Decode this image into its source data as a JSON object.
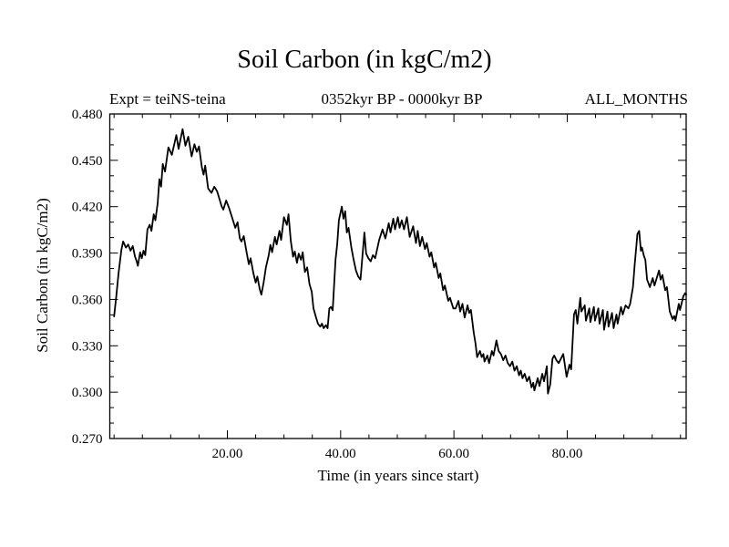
{
  "header": {
    "title": "Soil Carbon (in kgC/m2)",
    "experiment_label": "Expt = teiNS-teina",
    "period_label": "0352kyr BP - 0000kyr BP",
    "months_label": "ALL_MONTHS"
  },
  "chart_data": {
    "type": "line",
    "title": "Soil Carbon (in kgC/m2)",
    "subtitle": "0352kyr BP - 0000kyr BP",
    "annotations": [
      "Expt = teiNS-teina",
      "ALL_MONTHS"
    ],
    "xlabel": "Time (in years since start)",
    "ylabel": "Soil Carbon (in kgC/m2)",
    "xlim": [
      -0.75,
      101
    ],
    "ylim": [
      0.27,
      0.48
    ],
    "x_major_ticks": [
      20,
      40,
      60,
      80
    ],
    "x_major_tick_labels": [
      "20.00",
      "40.00",
      "60.00",
      "80.00"
    ],
    "x_minor_step": 5,
    "y_major_ticks": [
      0.27,
      0.3,
      0.33,
      0.36,
      0.39,
      0.42,
      0.45,
      0.48
    ],
    "y_major_tick_labels": [
      "0.270",
      "0.300",
      "0.330",
      "0.360",
      "0.390",
      "0.420",
      "0.450",
      "0.480"
    ],
    "y_minor_step": 0.01,
    "grid": false,
    "legend": false,
    "line_color": "#000000",
    "series": [
      {
        "name": "soil_carbon",
        "points": [
          [
            0.0,
            0.349
          ],
          [
            0.4,
            0.362
          ],
          [
            0.8,
            0.377
          ],
          [
            1.3,
            0.392
          ],
          [
            1.6,
            0.3975
          ],
          [
            2.1,
            0.3935
          ],
          [
            2.5,
            0.3955
          ],
          [
            2.9,
            0.3915
          ],
          [
            3.3,
            0.3945
          ],
          [
            3.7,
            0.3876
          ],
          [
            4.0,
            0.3846
          ],
          [
            4.2,
            0.3817
          ],
          [
            4.6,
            0.3905
          ],
          [
            4.9,
            0.3866
          ],
          [
            5.2,
            0.3915
          ],
          [
            5.5,
            0.3886
          ],
          [
            5.9,
            0.4053
          ],
          [
            6.3,
            0.4083
          ],
          [
            6.6,
            0.4043
          ],
          [
            7.0,
            0.4151
          ],
          [
            7.3,
            0.4112
          ],
          [
            7.7,
            0.422
          ],
          [
            8.0,
            0.4378
          ],
          [
            8.3,
            0.4329
          ],
          [
            8.6,
            0.4476
          ],
          [
            9.0,
            0.4427
          ],
          [
            9.6,
            0.4584
          ],
          [
            10.2,
            0.4535
          ],
          [
            11.0,
            0.4663
          ],
          [
            11.4,
            0.4574
          ],
          [
            12.1,
            0.4702
          ],
          [
            12.6,
            0.4594
          ],
          [
            13.1,
            0.4653
          ],
          [
            13.7,
            0.4525
          ],
          [
            14.2,
            0.4604
          ],
          [
            14.6,
            0.4555
          ],
          [
            15.0,
            0.459
          ],
          [
            15.5,
            0.4456
          ],
          [
            15.8,
            0.4407
          ],
          [
            16.1,
            0.4466
          ],
          [
            16.6,
            0.4318
          ],
          [
            17.2,
            0.4289
          ],
          [
            17.7,
            0.4329
          ],
          [
            18.2,
            0.4299
          ],
          [
            19.0,
            0.4201
          ],
          [
            19.3,
            0.4181
          ],
          [
            19.8,
            0.424
          ],
          [
            20.3,
            0.4191
          ],
          [
            20.9,
            0.4122
          ],
          [
            21.4,
            0.4063
          ],
          [
            21.8,
            0.41
          ],
          [
            22.2,
            0.3994
          ],
          [
            22.5,
            0.3975
          ],
          [
            22.9,
            0.401
          ],
          [
            23.4,
            0.3905
          ],
          [
            23.8,
            0.3827
          ],
          [
            24.1,
            0.3866
          ],
          [
            24.6,
            0.3768
          ],
          [
            25.0,
            0.3709
          ],
          [
            25.3,
            0.3748
          ],
          [
            25.7,
            0.367
          ],
          [
            26.0,
            0.363
          ],
          [
            26.4,
            0.3709
          ],
          [
            26.8,
            0.3807
          ],
          [
            27.3,
            0.3886
          ],
          [
            27.6,
            0.3953
          ],
          [
            27.9,
            0.3905
          ],
          [
            28.4,
            0.4004
          ],
          [
            28.7,
            0.3955
          ],
          [
            29.2,
            0.4044
          ],
          [
            29.5,
            0.3985
          ],
          [
            30.0,
            0.4132
          ],
          [
            30.5,
            0.4082
          ],
          [
            30.8,
            0.4151
          ],
          [
            31.2,
            0.398
          ],
          [
            31.6,
            0.3876
          ],
          [
            31.9,
            0.391
          ],
          [
            32.3,
            0.3837
          ],
          [
            32.6,
            0.3896
          ],
          [
            33.0,
            0.3856
          ],
          [
            33.3,
            0.3905
          ],
          [
            33.7,
            0.3778
          ],
          [
            34.1,
            0.3807
          ],
          [
            34.5,
            0.37
          ],
          [
            34.9,
            0.365
          ],
          [
            35.2,
            0.3542
          ],
          [
            35.6,
            0.349
          ],
          [
            36.0,
            0.3443
          ],
          [
            36.4,
            0.3424
          ],
          [
            36.7,
            0.3443
          ],
          [
            37.0,
            0.3414
          ],
          [
            37.4,
            0.3434
          ],
          [
            37.7,
            0.3414
          ],
          [
            38.0,
            0.3542
          ],
          [
            38.3,
            0.3551
          ],
          [
            38.6,
            0.353
          ],
          [
            39.1,
            0.3856
          ],
          [
            39.4,
            0.396
          ],
          [
            39.7,
            0.4112
          ],
          [
            40.2,
            0.42
          ],
          [
            40.5,
            0.4122
          ],
          [
            40.8,
            0.4171
          ],
          [
            41.1,
            0.4033
          ],
          [
            41.4,
            0.4063
          ],
          [
            41.9,
            0.3935
          ],
          [
            42.3,
            0.3856
          ],
          [
            42.7,
            0.3787
          ],
          [
            43.1,
            0.3748
          ],
          [
            43.5,
            0.3728
          ],
          [
            43.8,
            0.3856
          ],
          [
            44.2,
            0.4033
          ],
          [
            44.5,
            0.3896
          ],
          [
            44.9,
            0.3866
          ],
          [
            45.3,
            0.3846
          ],
          [
            45.7,
            0.3886
          ],
          [
            46.1,
            0.3866
          ],
          [
            46.8,
            0.3985
          ],
          [
            47.4,
            0.4053
          ],
          [
            47.9,
            0.3994
          ],
          [
            48.5,
            0.4093
          ],
          [
            48.8,
            0.4033
          ],
          [
            49.3,
            0.4122
          ],
          [
            49.6,
            0.4053
          ],
          [
            50.1,
            0.4132
          ],
          [
            50.4,
            0.4063
          ],
          [
            50.8,
            0.4112
          ],
          [
            51.2,
            0.4053
          ],
          [
            51.7,
            0.4132
          ],
          [
            52.2,
            0.4004
          ],
          [
            52.8,
            0.4073
          ],
          [
            53.3,
            0.3965
          ],
          [
            53.6,
            0.4043
          ],
          [
            54.0,
            0.3945
          ],
          [
            54.4,
            0.4004
          ],
          [
            54.9,
            0.3925
          ],
          [
            55.2,
            0.3965
          ],
          [
            55.7,
            0.3876
          ],
          [
            56.0,
            0.3905
          ],
          [
            56.5,
            0.3807
          ],
          [
            56.8,
            0.3837
          ],
          [
            57.3,
            0.3738
          ],
          [
            57.6,
            0.3768
          ],
          [
            58.1,
            0.366
          ],
          [
            58.4,
            0.369
          ],
          [
            59.0,
            0.3591
          ],
          [
            59.3,
            0.361
          ],
          [
            59.9,
            0.3542
          ],
          [
            60.3,
            0.3542
          ],
          [
            60.8,
            0.359
          ],
          [
            61.1,
            0.3522
          ],
          [
            61.5,
            0.3571
          ],
          [
            61.9,
            0.3483
          ],
          [
            62.4,
            0.3562
          ],
          [
            62.7,
            0.3512
          ],
          [
            63.0,
            0.3532
          ],
          [
            63.5,
            0.3384
          ],
          [
            63.8,
            0.3316
          ],
          [
            64.1,
            0.3227
          ],
          [
            64.6,
            0.3266
          ],
          [
            64.9,
            0.3227
          ],
          [
            65.2,
            0.3247
          ],
          [
            65.4,
            0.3198
          ],
          [
            65.9,
            0.3237
          ],
          [
            66.2,
            0.3188
          ],
          [
            66.7,
            0.3266
          ],
          [
            67.0,
            0.3237
          ],
          [
            67.5,
            0.3335
          ],
          [
            67.9,
            0.3266
          ],
          [
            68.3,
            0.3247
          ],
          [
            68.7,
            0.3207
          ],
          [
            69.1,
            0.3237
          ],
          [
            69.5,
            0.3188
          ],
          [
            69.9,
            0.3168
          ],
          [
            70.3,
            0.3198
          ],
          [
            70.7,
            0.3139
          ],
          [
            71.1,
            0.3168
          ],
          [
            71.5,
            0.3109
          ],
          [
            71.8,
            0.3139
          ],
          [
            72.1,
            0.309
          ],
          [
            72.5,
            0.3119
          ],
          [
            72.9,
            0.307
          ],
          [
            73.3,
            0.31
          ],
          [
            73.7,
            0.3031
          ],
          [
            74.0,
            0.3061
          ],
          [
            74.2,
            0.3011
          ],
          [
            74.8,
            0.309
          ],
          [
            75.1,
            0.304
          ],
          [
            75.6,
            0.3119
          ],
          [
            75.9,
            0.307
          ],
          [
            76.4,
            0.3168
          ],
          [
            76.6,
            0.2991
          ],
          [
            77.0,
            0.305
          ],
          [
            77.4,
            0.3217
          ],
          [
            77.7,
            0.3237
          ],
          [
            78.1,
            0.3207
          ],
          [
            78.5,
            0.3188
          ],
          [
            79.3,
            0.3247
          ],
          [
            79.9,
            0.3099
          ],
          [
            80.4,
            0.3178
          ],
          [
            80.7,
            0.3148
          ],
          [
            81.2,
            0.3502
          ],
          [
            81.5,
            0.3532
          ],
          [
            81.8,
            0.3443
          ],
          [
            82.3,
            0.361
          ],
          [
            82.5,
            0.3522
          ],
          [
            83.1,
            0.3561
          ],
          [
            83.3,
            0.3463
          ],
          [
            83.9,
            0.3542
          ],
          [
            84.1,
            0.3453
          ],
          [
            84.7,
            0.3551
          ],
          [
            84.9,
            0.3463
          ],
          [
            85.5,
            0.3542
          ],
          [
            85.7,
            0.3443
          ],
          [
            86.3,
            0.3532
          ],
          [
            86.5,
            0.3404
          ],
          [
            87.1,
            0.3522
          ],
          [
            87.3,
            0.3424
          ],
          [
            87.9,
            0.3512
          ],
          [
            88.2,
            0.3414
          ],
          [
            88.7,
            0.3502
          ],
          [
            88.9,
            0.3443
          ],
          [
            89.5,
            0.3551
          ],
          [
            89.8,
            0.3502
          ],
          [
            90.3,
            0.3561
          ],
          [
            90.8,
            0.3542
          ],
          [
            91.1,
            0.3571
          ],
          [
            91.6,
            0.368
          ],
          [
            91.9,
            0.3817
          ],
          [
            92.4,
            0.4023
          ],
          [
            92.7,
            0.4043
          ],
          [
            93.0,
            0.3915
          ],
          [
            93.2,
            0.3935
          ],
          [
            93.5,
            0.3886
          ],
          [
            93.8,
            0.3856
          ],
          [
            94.1,
            0.3728
          ],
          [
            94.6,
            0.368
          ],
          [
            95.1,
            0.3738
          ],
          [
            95.4,
            0.369
          ],
          [
            96.2,
            0.3787
          ],
          [
            96.5,
            0.3728
          ],
          [
            96.8,
            0.3758
          ],
          [
            97.3,
            0.366
          ],
          [
            97.6,
            0.368
          ],
          [
            98.1,
            0.3522
          ],
          [
            98.6,
            0.3473
          ],
          [
            98.9,
            0.3493
          ],
          [
            99.1,
            0.3463
          ],
          [
            99.7,
            0.3571
          ],
          [
            99.9,
            0.3532
          ],
          [
            100.5,
            0.362
          ],
          [
            100.8,
            0.364
          ],
          [
            101.0,
            0.363
          ]
        ]
      }
    ]
  }
}
